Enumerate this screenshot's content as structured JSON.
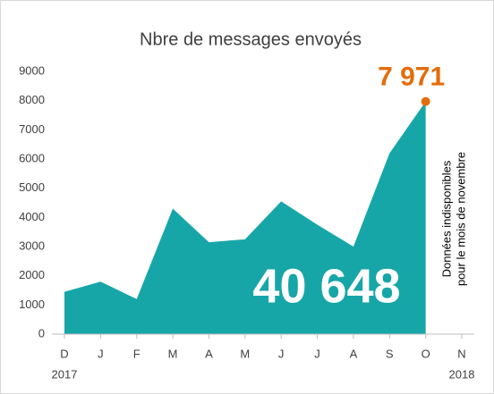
{
  "chart_data": {
    "type": "area",
    "title": "Nbre de messages envoyés",
    "categories": [
      "D",
      "J",
      "F",
      "M",
      "A",
      "M",
      "J",
      "J",
      "A",
      "S",
      "O",
      "N"
    ],
    "x_years": [
      "2017",
      null,
      null,
      null,
      null,
      null,
      null,
      null,
      null,
      null,
      null,
      "2018"
    ],
    "series": [
      {
        "name": "Messages envoyés",
        "color": "#17a6a8",
        "values": [
          1450,
          1800,
          1200,
          4300,
          3150,
          3250,
          4550,
          3750,
          3000,
          6200,
          7971,
          null
        ],
        "value_labels": [
          null,
          null,
          null,
          null,
          null,
          null,
          null,
          null,
          null,
          null,
          "7 971",
          null
        ],
        "marker_color": "#e46c0a"
      }
    ],
    "ylim": [
      0,
      9000
    ],
    "yticks": [
      0,
      1000,
      2000,
      3000,
      4000,
      5000,
      6000,
      7000,
      8000,
      9000
    ],
    "grid": false,
    "total_label": "40 648",
    "note": [
      "Données indisponibles",
      "pour le mois de novembre"
    ]
  }
}
